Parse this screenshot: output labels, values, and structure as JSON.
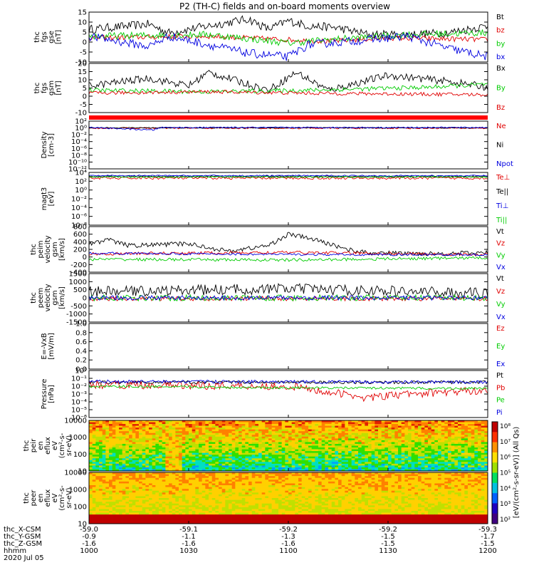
{
  "title": "P2 (TH-C) fields and on-board moments overview",
  "colors": {
    "black": "#000000",
    "red": "#e00000",
    "green": "#00cc00",
    "blue": "#0000e0"
  },
  "chart_data": [
    {
      "type": "line",
      "ylabel": [
        "thc",
        "fgs",
        "gse",
        "[nT]"
      ],
      "yticks": [
        "15",
        "10",
        "5",
        "0",
        "-5",
        "-10"
      ],
      "ylim": [
        -13,
        16
      ],
      "series": [
        {
          "name": "Bt",
          "color": "black"
        },
        {
          "name": "bz",
          "color": "red"
        },
        {
          "name": "by",
          "color": "green"
        },
        {
          "name": "bx",
          "color": "blue"
        }
      ]
    },
    {
      "type": "line",
      "ylabel": [
        "thc",
        "fgs",
        "gsm",
        "[nT]"
      ],
      "yticks": [
        "20",
        "15",
        "10",
        "5",
        "0",
        "-5",
        "-10"
      ],
      "ylim": [
        -13,
        20
      ],
      "series": [
        {
          "name": "Bx",
          "color": "black"
        },
        {
          "name": "By",
          "color": "green"
        },
        {
          "name": "Bz",
          "color": "red"
        }
      ]
    },
    {
      "type": "line",
      "ylabel": [
        "Density",
        "[cm-3]"
      ],
      "yticks": [
        "10²",
        "10⁰",
        "10⁻²",
        "10⁻⁴",
        "10⁻⁶",
        "10⁻⁸",
        "10⁻¹⁰",
        "10⁻¹²"
      ],
      "ylim": [
        -12,
        3
      ],
      "scale": "log",
      "series": [
        {
          "name": "Ne",
          "color": "red"
        },
        {
          "name": "Ni",
          "color": "black"
        },
        {
          "name": "Npot",
          "color": "blue"
        }
      ]
    },
    {
      "type": "line",
      "ylabel": [
        "magt3",
        "[eV]"
      ],
      "yticks": [
        "10⁴",
        "10²",
        "10⁰",
        "10⁻²",
        "10⁻⁴",
        "10⁻⁶",
        "10⁻⁸"
      ],
      "ylim": [
        -9,
        4
      ],
      "scale": "log",
      "series": [
        {
          "name": "Te⊥",
          "color": "red"
        },
        {
          "name": "Te||",
          "color": "black"
        },
        {
          "name": "Ti⊥",
          "color": "blue"
        },
        {
          "name": "Ti||",
          "color": "green"
        }
      ]
    },
    {
      "type": "line",
      "ylabel": [
        "thc",
        "peim",
        "velocity",
        "gsm",
        "[km/s]"
      ],
      "yticks": [
        "800",
        "600",
        "400",
        "200",
        "0",
        "-200",
        "-400"
      ],
      "ylim": [
        -400,
        800
      ],
      "series": [
        {
          "name": "Vt",
          "color": "black"
        },
        {
          "name": "Vz",
          "color": "red"
        },
        {
          "name": "Vy",
          "color": "green"
        },
        {
          "name": "Vx",
          "color": "blue"
        }
      ]
    },
    {
      "type": "line",
      "ylabel": [
        "thc",
        "peem",
        "velocity",
        "gsm",
        "[km/s]"
      ],
      "yticks": [
        "1500",
        "1000",
        "500",
        "0",
        "-500",
        "-1000",
        "-1500"
      ],
      "ylim": [
        -1600,
        1600
      ],
      "series": [
        {
          "name": "Vt",
          "color": "black"
        },
        {
          "name": "Vz",
          "color": "red"
        },
        {
          "name": "Vy",
          "color": "green"
        },
        {
          "name": "Vx",
          "color": "blue"
        }
      ]
    },
    {
      "type": "line",
      "ylabel": [
        "E=-VxB",
        "[mV/m]"
      ],
      "yticks": [
        "1.0",
        "0.8",
        "0.6",
        "0.4",
        "0.2",
        "0.0"
      ],
      "ylim": [
        0,
        1
      ],
      "series": [
        {
          "name": "Ez",
          "color": "red"
        },
        {
          "name": "Ey",
          "color": "green"
        },
        {
          "name": "Ex",
          "color": "blue"
        }
      ]
    },
    {
      "type": "line",
      "ylabel": [
        "Pressure",
        "[nPa]"
      ],
      "yticks": [
        "10⁰",
        "10⁻¹",
        "10⁻²",
        "10⁻³",
        "10⁻⁴",
        "10⁻⁵",
        "10⁻⁶"
      ],
      "ylim": [
        -6,
        0
      ],
      "scale": "log",
      "series": [
        {
          "name": "Pt",
          "color": "black"
        },
        {
          "name": "Pb",
          "color": "red"
        },
        {
          "name": "Pe",
          "color": "green"
        },
        {
          "name": "Pi",
          "color": "blue"
        }
      ]
    },
    {
      "type": "heatmap",
      "ylabel": [
        "thc",
        "peir",
        "en",
        "eflux",
        "eV",
        "(cm²-s-",
        "sr-eV)"
      ],
      "yticks": [
        "10000",
        "1000",
        "100",
        "10"
      ]
    },
    {
      "type": "heatmap",
      "ylabel": [
        "thc",
        "peer",
        "en",
        "eflux",
        "eV",
        "(cm²-s-",
        "sr-eV)"
      ],
      "yticks": [
        "10000",
        "1000",
        "100",
        "10"
      ]
    }
  ],
  "colorbar": {
    "ticks": [
      "10⁸",
      "10⁷",
      "10⁶",
      "10⁵",
      "10⁴",
      "10³",
      "10²"
    ],
    "label": "[eV/(cm²-s-sr-eV)] (All Qs)"
  },
  "time_axis": {
    "rows": [
      {
        "label": "thc_X-CSM",
        "values": [
          "-59.0",
          "-59.1",
          "-59.2",
          "-59.2",
          "-59.3"
        ]
      },
      {
        "label": "thc_Y-GSM",
        "values": [
          "-0.9",
          "-1.1",
          "-1.3",
          "-1.5",
          "-1.7"
        ]
      },
      {
        "label": "thc_Z-GSM",
        "values": [
          "-1.6",
          "-1.6",
          "-1.6",
          "-1.5",
          "-1.5"
        ]
      },
      {
        "label": "hhmm",
        "values": [
          "1000",
          "1030",
          "1100",
          "1130",
          "1200"
        ]
      }
    ],
    "date": "2020 Jul 05"
  }
}
